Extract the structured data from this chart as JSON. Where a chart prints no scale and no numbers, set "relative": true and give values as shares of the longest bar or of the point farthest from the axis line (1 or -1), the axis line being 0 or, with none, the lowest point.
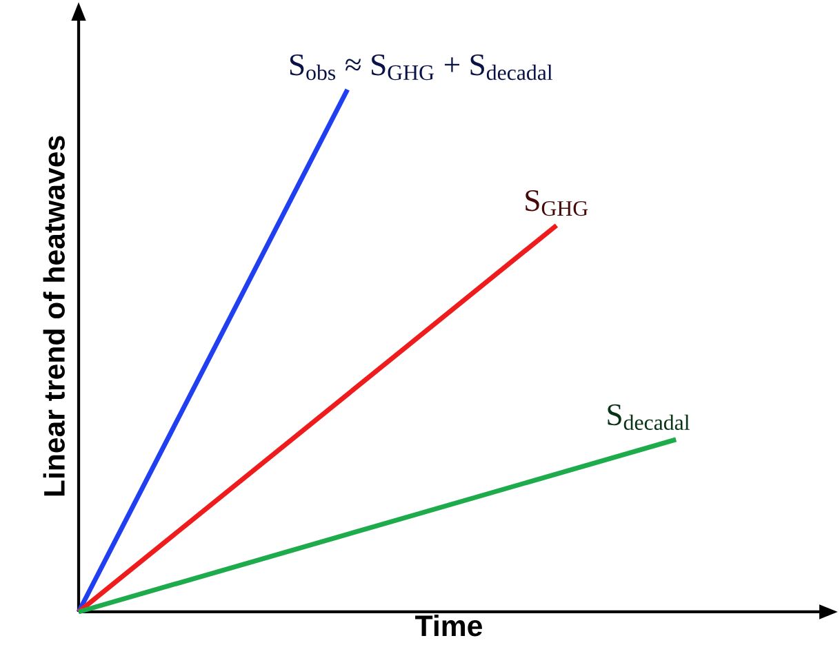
{
  "chart_data": {
    "type": "line",
    "xlabel": "Time",
    "ylabel": "Linear trend of heatwaves",
    "relative": true,
    "categories": [
      null,
      null,
      null,
      null,
      null,
      null,
      null,
      null,
      null,
      null,
      null,
      null,
      null,
      null,
      null,
      null,
      null,
      null,
      null,
      null,
      null
    ],
    "series": [
      {
        "name": "S$_{obs}$ ≈ S$_{GHG}$ + S$_{decadal}$",
        "color": "#1f3ff0",
        "values": [
          0,
          null,
          null,
          null,
          null,
          null,
          null,
          null,
          null,
          1,
          null,
          null,
          null,
          null,
          null,
          null,
          null,
          null,
          null,
          null,
          null
        ]
      },
      {
        "name": "S$_{GHG}$",
        "color": "#ee1c1c",
        "values": [
          0,
          null,
          null,
          null,
          null,
          null,
          null,
          null,
          null,
          null,
          null,
          null,
          null,
          null,
          null,
          null,
          0.74,
          null,
          null,
          null,
          null
        ]
      },
      {
        "name": "S$_{decadal}$",
        "color": "#1eab4b",
        "values": [
          0,
          null,
          null,
          null,
          null,
          null,
          null,
          null,
          null,
          null,
          null,
          null,
          null,
          null,
          null,
          null,
          null,
          null,
          null,
          null,
          0.33
        ]
      }
    ]
  }
}
